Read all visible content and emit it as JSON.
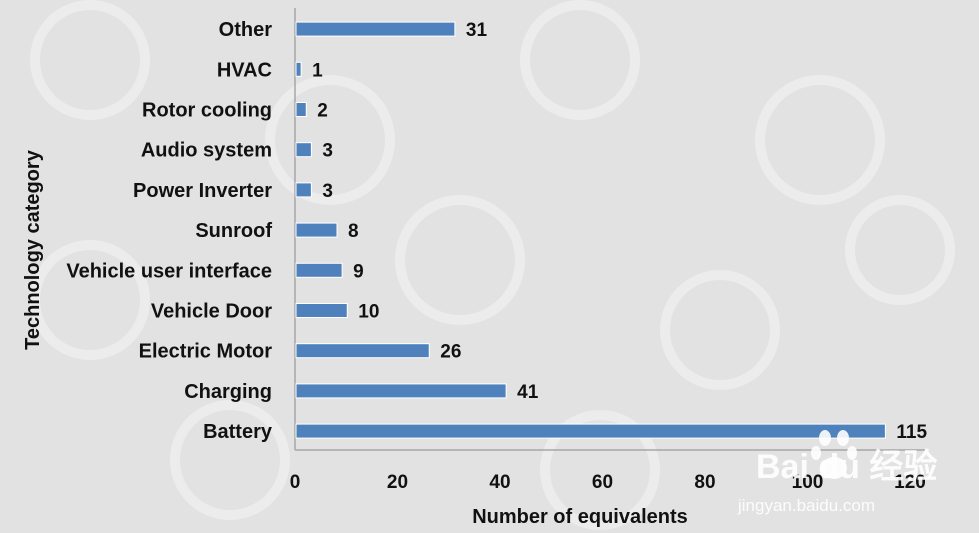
{
  "chart_data": {
    "type": "bar",
    "orientation": "horizontal",
    "categories": [
      "Other",
      "HVAC",
      "Rotor cooling",
      "Audio system",
      "Power Inverter",
      "Sunroof",
      "Vehicle user interface",
      "Vehicle Door",
      "Electric Motor",
      "Charging",
      "Battery"
    ],
    "values": [
      31,
      1,
      2,
      3,
      3,
      8,
      9,
      10,
      26,
      41,
      115
    ],
    "xlabel": "Number of equivalents",
    "ylabel": "Technology category",
    "xlim": [
      0,
      120
    ],
    "xticks": [
      "0",
      "20",
      "40",
      "60",
      "80",
      "100",
      "120"
    ],
    "bar_color": "#4f81bd",
    "grid": false,
    "legend": "none"
  },
  "watermark": {
    "brand": "Bai du 经验",
    "url": "jingyan.baidu.com"
  }
}
